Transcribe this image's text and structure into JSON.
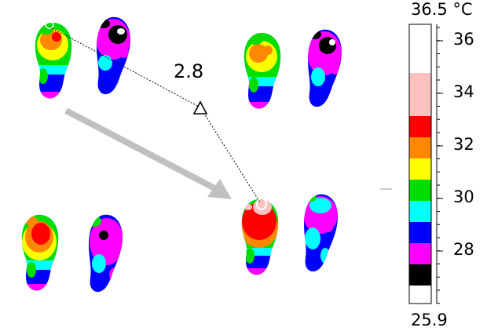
{
  "measurement": {
    "delta_value": "2.8"
  },
  "color_scale": {
    "max_label": "36.5 °C",
    "min_label": "25.9",
    "ticks": [
      "36",
      "34",
      "32",
      "30",
      "28"
    ],
    "bands": [
      {
        "name": "max",
        "color": "#ffffff"
      },
      {
        "name": "light-pink",
        "color": "#ffc0c0"
      },
      {
        "name": "red",
        "color": "#ff0000"
      },
      {
        "name": "orange",
        "color": "#ff8800"
      },
      {
        "name": "yellow",
        "color": "#ffff00"
      },
      {
        "name": "green",
        "color": "#00dd00"
      },
      {
        "name": "cyan",
        "color": "#00ffff"
      },
      {
        "name": "blue",
        "color": "#0000ff"
      },
      {
        "name": "magenta",
        "color": "#ff00ff"
      },
      {
        "name": "black",
        "color": "#000000"
      },
      {
        "name": "min",
        "color": "#ffffff"
      }
    ]
  },
  "accent_colors": {
    "arrow": "#c0c0c0",
    "connector": "#000000"
  }
}
